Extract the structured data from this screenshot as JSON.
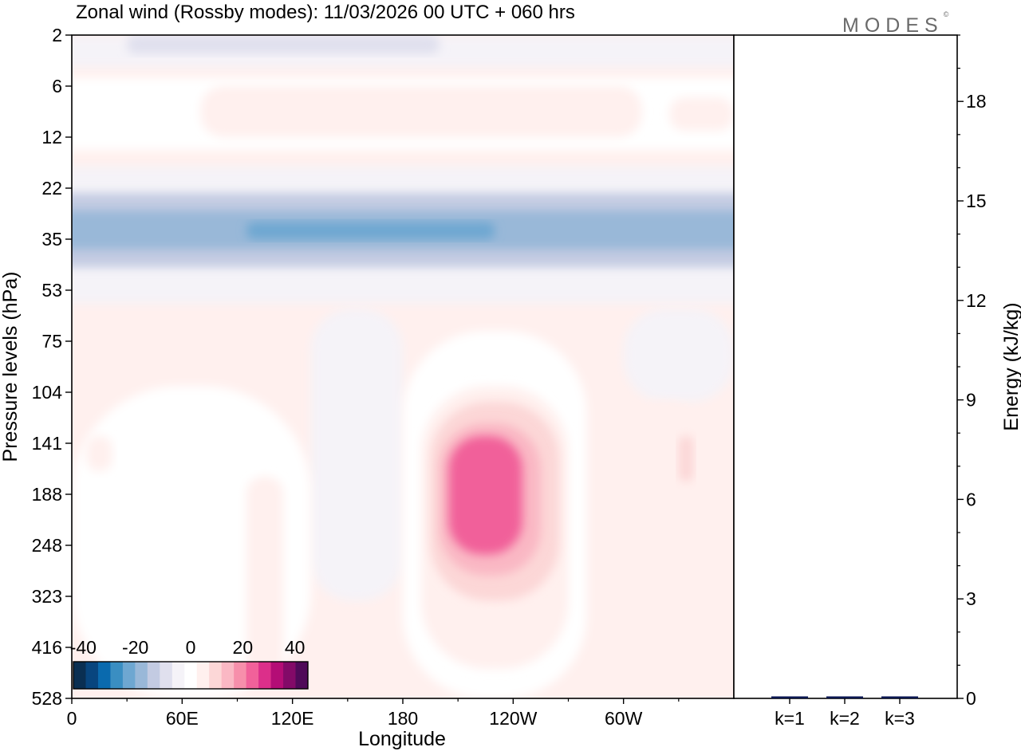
{
  "chart_data": [
    {
      "type": "heatmap",
      "title": "Zonal wind (Rossby modes):  11/03/2026  00 UTC  + 060 hrs",
      "xlabel": "Longitude",
      "ylabel": "Pressure levels (hPa)",
      "x_ticks": [
        "0",
        "60E",
        "120E",
        "180",
        "120W",
        "60W"
      ],
      "x_tick_values": [
        0,
        60,
        120,
        180,
        240,
        300
      ],
      "xlim": [
        0,
        360
      ],
      "y_ticks": [
        "2",
        "6",
        "12",
        "22",
        "35",
        "53",
        "75",
        "104",
        "141",
        "188",
        "248",
        "323",
        "416",
        "528"
      ],
      "colorbar": {
        "ticks": [
          "-40",
          "-20",
          "0",
          "20",
          "40"
        ],
        "range": [
          -45,
          45
        ],
        "step": 5,
        "colors": [
          "#0a2f52",
          "#08457e",
          "#0a6aae",
          "#3a8ec2",
          "#6ea7d1",
          "#99b8d8",
          "#c3cbe2",
          "#e0e0ee",
          "#f5f3f8",
          "#ffffff",
          "#fff0ee",
          "#fcd7d7",
          "#fab8c4",
          "#f78fab",
          "#f1619a",
          "#dc2f8a",
          "#b40d76",
          "#830a68",
          "#4f0a59"
        ]
      },
      "regions": [
        {
          "value": -3,
          "lon": [
            0,
            360
          ],
          "p": [
            2,
            4
          ]
        },
        {
          "value": -8,
          "lon": [
            30,
            200
          ],
          "p": [
            2,
            3
          ]
        },
        {
          "value": 3,
          "lon": [
            0,
            360
          ],
          "p": [
            5,
            14
          ]
        },
        {
          "value": 6,
          "lon": [
            70,
            310
          ],
          "p": [
            6,
            12
          ]
        },
        {
          "value": 8,
          "lon": [
            325,
            360
          ],
          "p": [
            7,
            11
          ]
        },
        {
          "value": -4,
          "lon": [
            0,
            360
          ],
          "p": [
            17,
            58
          ]
        },
        {
          "value": -12,
          "lon": [
            0,
            360
          ],
          "p": [
            23,
            44
          ]
        },
        {
          "value": -18,
          "lon": [
            0,
            360
          ],
          "p": [
            27,
            38
          ]
        },
        {
          "value": -22,
          "lon": [
            95,
            230
          ],
          "p": [
            30,
            35
          ]
        },
        {
          "value": -3,
          "lon": [
            130,
            180
          ],
          "p": [
            60,
            330
          ]
        },
        {
          "value": -1,
          "lon": [
            300,
            360
          ],
          "p": [
            60,
            110
          ]
        },
        {
          "value": 2,
          "lon": [
            0,
            130
          ],
          "p": [
            100,
            528
          ]
        },
        {
          "value": 2,
          "lon": [
            180,
            280
          ],
          "p": [
            70,
            528
          ]
        },
        {
          "value": 6,
          "lon": [
            190,
            270
          ],
          "p": [
            100,
            460
          ]
        },
        {
          "value": 10,
          "lon": [
            195,
            265
          ],
          "p": [
            110,
            330
          ]
        },
        {
          "value": 16,
          "lon": [
            200,
            255
          ],
          "p": [
            125,
            290
          ]
        },
        {
          "value": 25,
          "lon": [
            205,
            245
          ],
          "p": [
            135,
            260
          ]
        },
        {
          "value": 6,
          "lon": [
            95,
            115
          ],
          "p": [
            170,
            528
          ]
        },
        {
          "value": 6,
          "lon": [
            305,
            340
          ],
          "p": [
            110,
            250
          ]
        },
        {
          "value": 10,
          "lon": [
            330,
            338
          ],
          "p": [
            135,
            175
          ]
        },
        {
          "value": 5,
          "lon": [
            292,
            315
          ],
          "p": [
            320,
            450
          ]
        },
        {
          "value": 5,
          "lon": [
            8,
            22
          ],
          "p": [
            135,
            165
          ]
        }
      ]
    },
    {
      "type": "bar",
      "categories": [
        "k=1",
        "k=2",
        "k=3"
      ],
      "values": [
        0.05,
        0.04,
        0.03
      ],
      "ylabel": "Energy (kJ/kg)",
      "y_ticks": [
        "0",
        "3",
        "6",
        "9",
        "12",
        "15",
        "18"
      ],
      "ylim": [
        0,
        20
      ],
      "bar_color": "#0a1650"
    }
  ],
  "brand": {
    "name": "MODES",
    "mark": "©"
  }
}
